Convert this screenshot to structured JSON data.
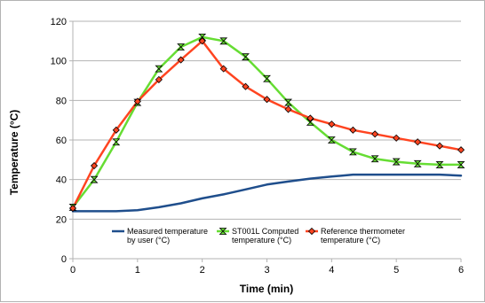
{
  "chart_data": {
    "type": "line",
    "title": "",
    "xlabel": "Time (min)",
    "ylabel": "Temperature (°C)",
    "xlim": [
      0,
      6
    ],
    "ylim": [
      0,
      120
    ],
    "x_ticks": [
      "0",
      "1",
      "2",
      "3",
      "4",
      "5",
      "6"
    ],
    "y_ticks": [
      "0",
      "20",
      "40",
      "60",
      "80",
      "100",
      "120"
    ],
    "grid": "horizontal",
    "legend_position": "inside-bottom",
    "series": [
      {
        "name": "Measured temperature by user (°C)",
        "legend_lines": [
          "Measured temperature",
          "by user (°C)"
        ],
        "color": "#1f4e8c",
        "marker": "none",
        "x": [
          0,
          0.33,
          0.67,
          1,
          1.33,
          1.67,
          2,
          2.33,
          2.67,
          3,
          3.33,
          3.67,
          4,
          4.33,
          4.67,
          5,
          5.33,
          5.67,
          6
        ],
        "y": [
          24,
          24,
          24,
          24.5,
          26,
          28,
          30.5,
          32.5,
          35,
          37.5,
          39,
          40.5,
          41.5,
          42.5,
          42.5,
          42.5,
          42.5,
          42.5,
          42
        ]
      },
      {
        "name": "ST001L Computed temperature (°C)",
        "legend_lines": [
          "ST001L Computed",
          "temperature (°C)"
        ],
        "color": "#66dd33",
        "marker": "bowtie",
        "x": [
          0,
          0.33,
          0.67,
          1,
          1.33,
          1.67,
          2,
          2.33,
          2.67,
          3,
          3.33,
          3.67,
          4,
          4.33,
          4.67,
          5,
          5.33,
          5.67,
          6
        ],
        "y": [
          26,
          40,
          59,
          79,
          96,
          107,
          112,
          110,
          102,
          91,
          79,
          69,
          60,
          54,
          50.5,
          49,
          48,
          47.5,
          47.5
        ]
      },
      {
        "name": "Reference thermometer temperature (°C)",
        "legend_lines": [
          "Reference thermometer",
          "temperature (°C)"
        ],
        "color": "#ff4420",
        "marker": "diamond",
        "x": [
          0,
          0.33,
          0.67,
          1,
          1.33,
          1.67,
          2,
          2.33,
          2.67,
          3,
          3.33,
          3.67,
          4,
          4.33,
          4.67,
          5,
          5.33,
          5.67,
          6
        ],
        "y": [
          25.5,
          47,
          65,
          79.5,
          90.5,
          100.5,
          110,
          96,
          87,
          80.5,
          75.5,
          71,
          68,
          65,
          63,
          61,
          59,
          57,
          55
        ]
      }
    ]
  }
}
